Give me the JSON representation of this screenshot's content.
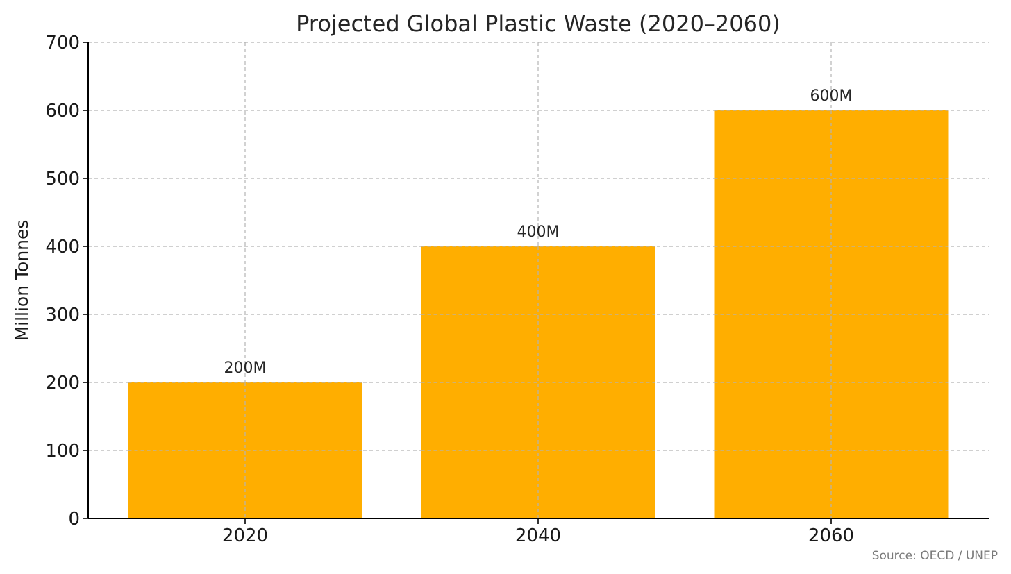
{
  "chart_data": {
    "type": "bar",
    "title": "Projected Global Plastic Waste (2020–2060)",
    "xlabel": "",
    "ylabel": "Million Tonnes",
    "categories": [
      "2020",
      "2040",
      "2060"
    ],
    "values": [
      200,
      400,
      600
    ],
    "data_labels": [
      "200M",
      "400M",
      "600M"
    ],
    "ylim": [
      0,
      700
    ],
    "yticks": [
      0,
      100,
      200,
      300,
      400,
      500,
      600,
      700
    ],
    "grid": true,
    "bar_color": "#FFAE00",
    "annotations": [
      "Source: OECD / UNEP"
    ]
  }
}
